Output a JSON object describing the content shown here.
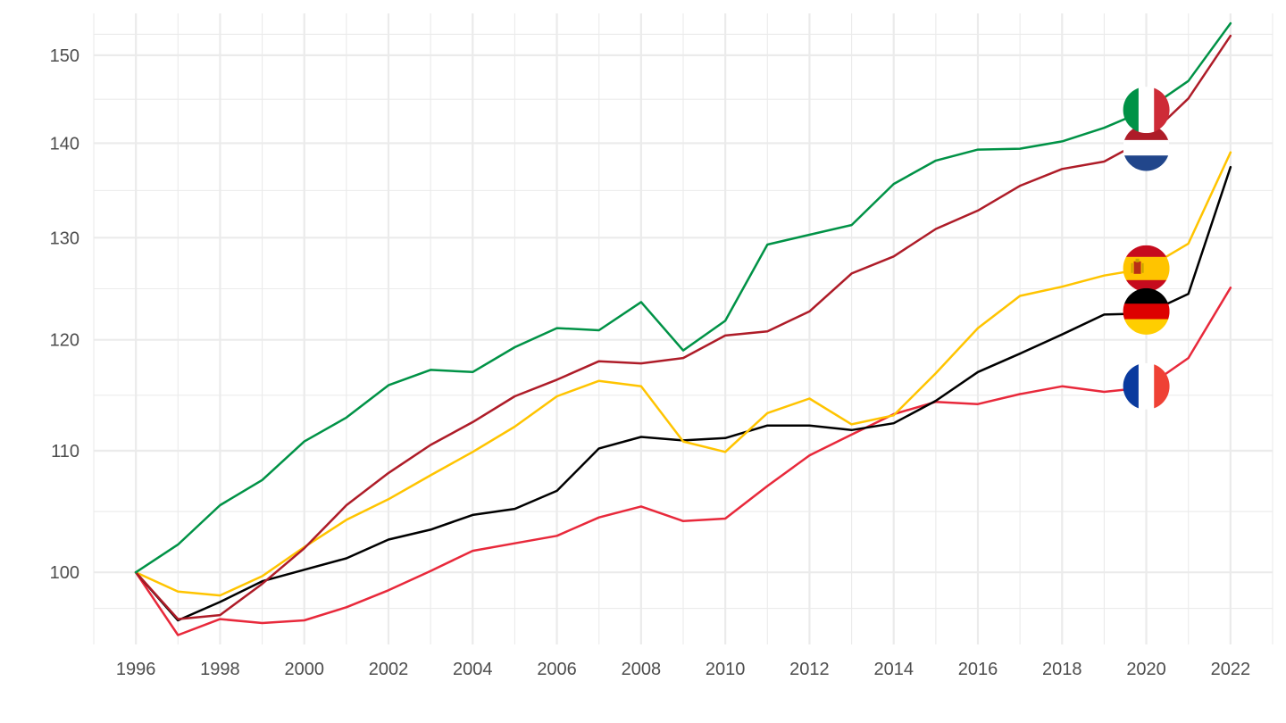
{
  "chart_data": {
    "type": "line",
    "title": "",
    "xlabel": "",
    "ylabel": "",
    "y_scale": "log",
    "xlim": [
      1995,
      2023
    ],
    "ylim": [
      94.5,
      155
    ],
    "x_ticks": [
      1996,
      1998,
      2000,
      2002,
      2004,
      2006,
      2008,
      2010,
      2012,
      2014,
      2016,
      2018,
      2020,
      2022
    ],
    "y_ticks": [
      100,
      110,
      120,
      130,
      140,
      150
    ],
    "grid": true,
    "legend": "none",
    "x": [
      1996,
      1997,
      1998,
      1999,
      2000,
      2001,
      2002,
      2003,
      2004,
      2005,
      2006,
      2007,
      2008,
      2009,
      2010,
      2011,
      2012,
      2013,
      2014,
      2015,
      2016,
      2017,
      2018,
      2019,
      2020,
      2021,
      2022
    ],
    "series": [
      {
        "flag": "italy",
        "color": "#009246",
        "values": [
          100,
          102.2,
          105.4,
          107.5,
          110.8,
          112.9,
          115.8,
          117.2,
          117.0,
          119.3,
          121.1,
          120.9,
          123.6,
          119.0,
          121.8,
          129.3,
          130.3,
          131.3,
          135.6,
          138.1,
          139.3,
          139.4,
          140.2,
          141.7,
          143.7,
          147.0,
          153.8
        ]
      },
      {
        "flag": "netherlands",
        "color": "#AE1C28",
        "values": [
          100,
          96.4,
          96.7,
          99.1,
          101.9,
          105.4,
          108.1,
          110.5,
          112.5,
          114.8,
          116.3,
          118.0,
          117.8,
          118.3,
          120.4,
          120.8,
          122.7,
          126.4,
          128.1,
          130.9,
          132.8,
          135.4,
          137.2,
          138.0,
          140.5,
          145.0,
          152.3
        ]
      },
      {
        "flag": "spain",
        "color": "#FFC400",
        "values": [
          100,
          98.5,
          98.2,
          99.7,
          102.0,
          104.2,
          105.9,
          107.9,
          109.9,
          112.1,
          114.8,
          116.2,
          115.7,
          110.8,
          109.9,
          113.3,
          114.6,
          112.3,
          113.1,
          116.9,
          121.1,
          124.2,
          125.1,
          126.2,
          126.9,
          129.4,
          139.0
        ]
      },
      {
        "flag": "germany",
        "color": "#000000",
        "values": [
          100,
          96.3,
          97.7,
          99.3,
          100.2,
          101.1,
          102.6,
          103.4,
          104.6,
          105.1,
          106.6,
          110.2,
          111.2,
          110.9,
          111.1,
          112.2,
          112.2,
          111.8,
          112.4,
          114.4,
          117.0,
          118.7,
          120.5,
          122.4,
          122.5,
          124.4,
          137.4
        ]
      },
      {
        "flag": "france",
        "color": "#E8293B",
        "values": [
          100,
          95.2,
          96.4,
          96.1,
          96.3,
          97.3,
          98.6,
          100.1,
          101.7,
          102.3,
          102.9,
          104.4,
          105.3,
          104.1,
          104.3,
          107.0,
          109.6,
          111.4,
          113.2,
          114.3,
          114.1,
          115.0,
          115.7,
          115.2,
          115.6,
          118.3,
          125.0
        ]
      }
    ],
    "markers": [
      {
        "flag": "netherlands",
        "x": 2020,
        "y": 139.5
      },
      {
        "flag": "italy",
        "x": 2020,
        "y": 143.7
      },
      {
        "flag": "spain",
        "x": 2020,
        "y": 126.9
      },
      {
        "flag": "germany",
        "x": 2020,
        "y": 122.7
      },
      {
        "flag": "france",
        "x": 2020,
        "y": 115.7
      }
    ]
  }
}
